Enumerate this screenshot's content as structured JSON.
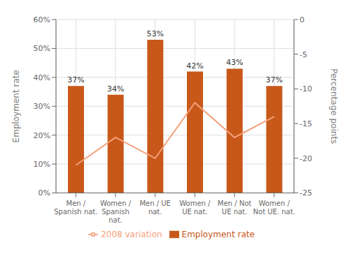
{
  "chart_data": {
    "type": "bar",
    "categories": [
      "Men /\nSpanish nat.",
      "Women /\nSpanish\nnat.",
      "Men / UE\nnat.",
      "Women /\nUE nat.",
      "Men / Not\nUE nat.",
      "Women /\nNot UE. nat."
    ],
    "series": [
      {
        "name": "Employment rate",
        "type": "bar",
        "color": "#C8581A",
        "values": [
          0.37,
          0.34,
          0.53,
          0.42,
          0.43,
          0.37
        ],
        "value_labels": [
          "37%",
          "34%",
          "53%",
          "42%",
          "43%",
          "37%"
        ]
      },
      {
        "name": "2008 variation",
        "type": "line",
        "color": "#F4A07A",
        "axis": "y2",
        "values": [
          -21,
          -17,
          -20,
          -12,
          -17,
          -14
        ]
      }
    ],
    "ylabel": "Employment rate",
    "y2label": "Percentage points",
    "ylim": [
      0,
      0.6
    ],
    "yticks": [
      {
        "value": 0.0,
        "label": "0%"
      },
      {
        "value": 0.1,
        "label": "10%"
      },
      {
        "value": 0.2,
        "label": "20%"
      },
      {
        "value": 0.3,
        "label": "30%"
      },
      {
        "value": 0.4,
        "label": "40%"
      },
      {
        "value": 0.5,
        "label": "50%"
      },
      {
        "value": 0.6,
        "label": "60%"
      }
    ],
    "y2lim": [
      -25,
      0
    ],
    "y2ticks": [
      0,
      -5,
      -10,
      -15,
      -20,
      -25
    ],
    "grid": true,
    "legend": "bottom",
    "data_labels": true
  }
}
